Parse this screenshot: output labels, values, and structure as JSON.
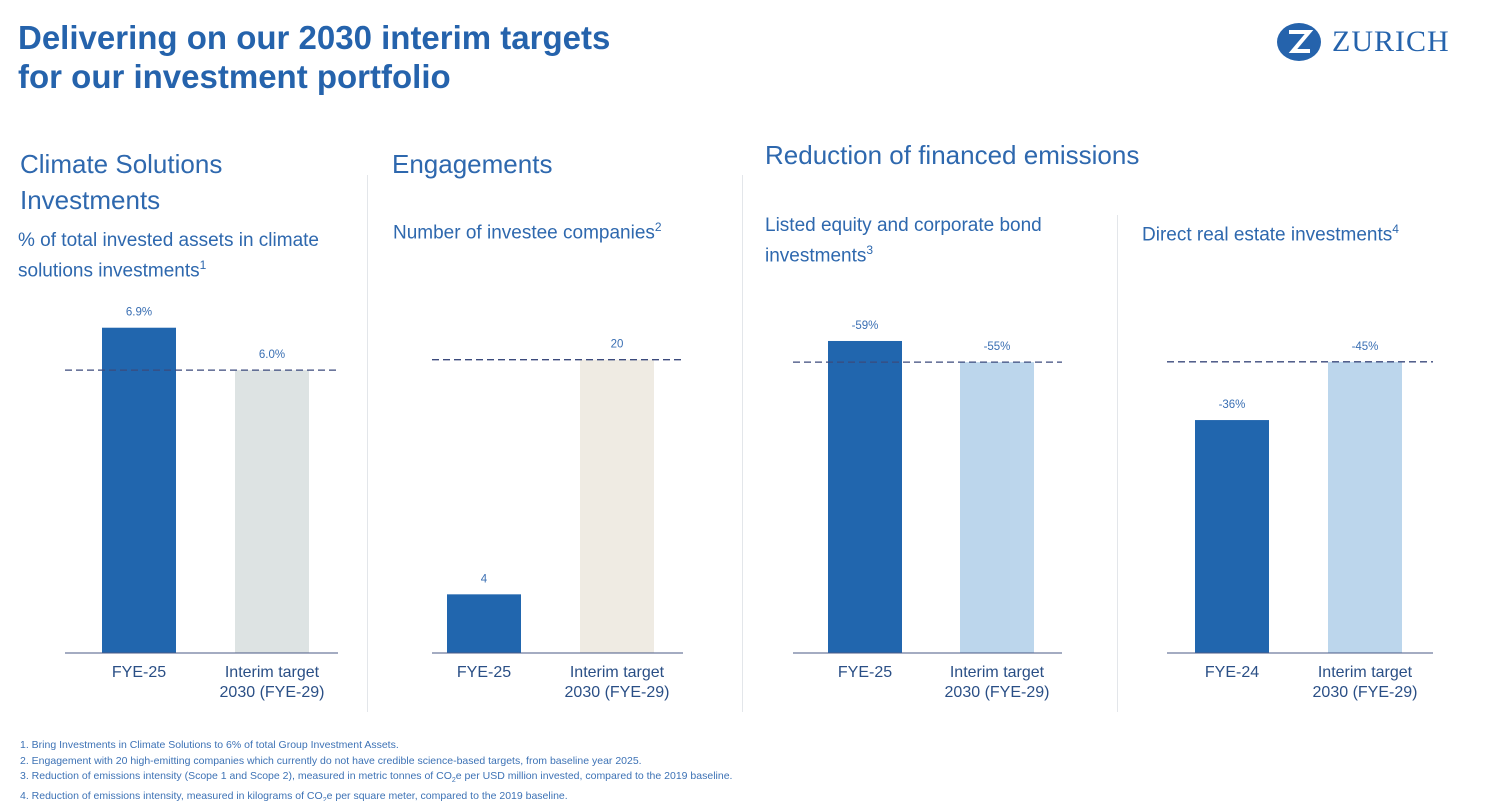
{
  "title_line1": "Delivering on our 2030 interim targets",
  "title_line2": "for our investment portfolio",
  "logo": {
    "text": "ZURICH",
    "icon": "zurich-z-logo-icon"
  },
  "sections": {
    "climate": {
      "title_line1": "Climate Solutions",
      "title_line2": "Investments",
      "subtitle_line1": "% of total invested assets in climate",
      "subtitle_line2": "solutions investments",
      "footnote": "1"
    },
    "engagements": {
      "title": "Engagements",
      "subtitle": "Number of investee companies",
      "footnote": "2"
    },
    "reduction": {
      "title": "Reduction of financed emissions",
      "listed": {
        "subtitle_line1": "Listed equity and corporate bond",
        "subtitle_line2": "investments",
        "footnote": "3"
      },
      "real_estate": {
        "subtitle": "Direct real estate investments",
        "footnote": "4"
      }
    }
  },
  "colors": {
    "actual": "#2166ae",
    "target_climate": "#dde3e3",
    "target_engagement": "#efebe3",
    "target_emissions": "#bcd6ec",
    "target_line": "#3b4a7c"
  },
  "chart_data": [
    {
      "type": "bar",
      "categories": [
        "FYE-25",
        "Interim target 2030 (FYE-29)"
      ],
      "cat_line1": [
        "FYE-25",
        "Interim target"
      ],
      "cat_line2": [
        "",
        "2030 (FYE-29)"
      ],
      "values": [
        6.9,
        6.0
      ],
      "labels": [
        "6.9%",
        "6.0%"
      ],
      "target": 6.0,
      "ylim": [
        0,
        7.0
      ]
    },
    {
      "type": "bar",
      "categories": [
        "FYE-25",
        "Interim target 2030 (FYE-29)"
      ],
      "cat_line1": [
        "FYE-25",
        "Interim target"
      ],
      "cat_line2": [
        "",
        "2030 (FYE-29)"
      ],
      "values": [
        4,
        20
      ],
      "labels": [
        "4",
        "20"
      ],
      "target": 20,
      "ylim": [
        0,
        22.5
      ]
    },
    {
      "type": "bar",
      "categories": [
        "FYE-25",
        "Interim target 2030 (FYE-29)"
      ],
      "cat_line1": [
        "FYE-25",
        "Interim target"
      ],
      "cat_line2": [
        "",
        "2030 (FYE-29)"
      ],
      "values": [
        -59,
        -55
      ],
      "labels": [
        "-59%",
        "-55%"
      ],
      "target": -55,
      "ylim": [
        0,
        -62.4
      ]
    },
    {
      "type": "bar",
      "categories": [
        "FYE-24",
        "Interim target 2030 (FYE-29)"
      ],
      "cat_line1": [
        "FYE-24",
        "Interim target"
      ],
      "cat_line2": [
        "",
        "2030 (FYE-29)"
      ],
      "values": [
        -36,
        -45
      ],
      "labels": [
        "-36%",
        "-45%"
      ],
      "target": -45,
      "ylim": [
        0,
        -51
      ]
    }
  ],
  "footnotes": [
    {
      "pre": "1. Bring Investments in Climate Solutions to 6% of total Group Investment Assets.",
      "sub": "",
      "post": ""
    },
    {
      "pre": "2. Engagement with 20 high-emitting companies which currently do not have credible science-based targets, from baseline year 2025.",
      "sub": "",
      "post": ""
    },
    {
      "pre": "3. Reduction of emissions intensity (Scope 1 and Scope 2), measured in metric tonnes of CO",
      "sub": "2",
      "post": "e per USD million invested, compared to the 2019 baseline."
    },
    {
      "pre": "4. Reduction of emissions intensity, measured in kilograms of CO",
      "sub": "2",
      "post": "e per square meter, compared to the 2019 baseline."
    }
  ]
}
